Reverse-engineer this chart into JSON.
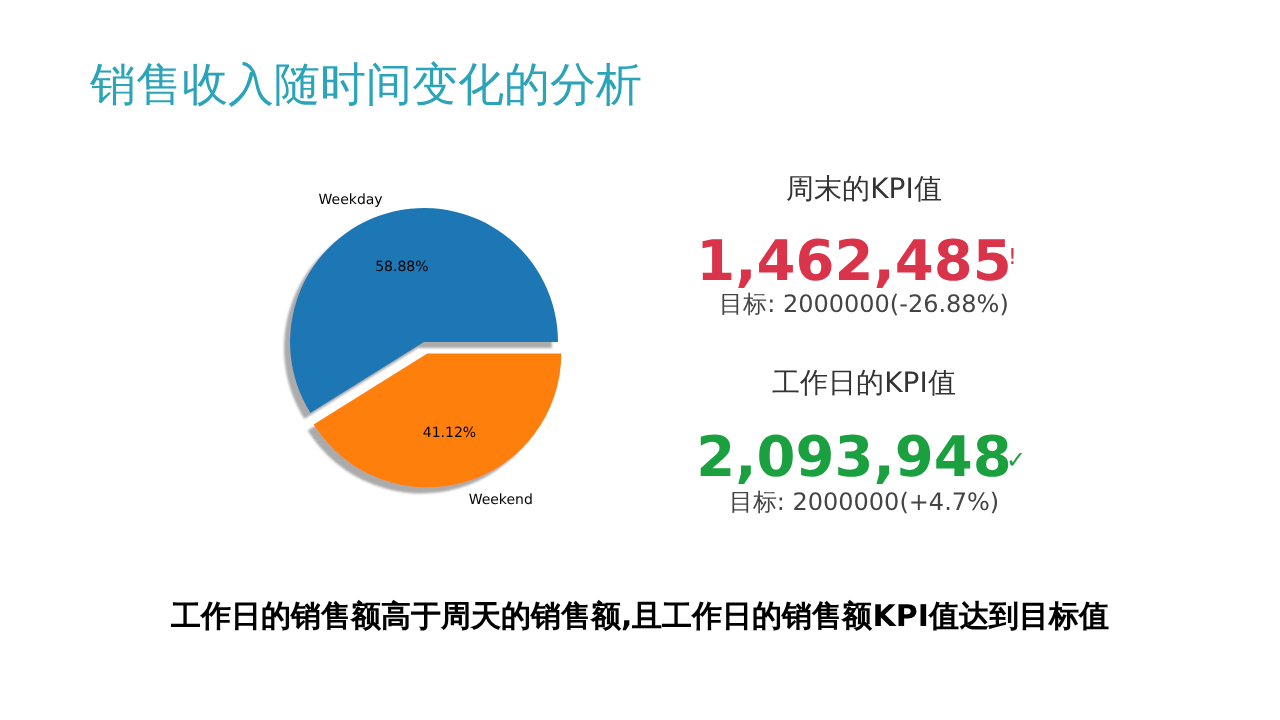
{
  "chart_data": [
    {
      "type": "pie",
      "title": "销售收入随时间变化的分析",
      "categories": [
        "Weekday",
        "Weekend"
      ],
      "values": [
        58.88,
        41.12
      ],
      "colors": [
        "#1f77b4",
        "#ff7f0e"
      ],
      "value_labels": [
        "58.88%",
        "41.12%"
      ]
    },
    {
      "type": "other",
      "annotations": [
        "周末的KPI值",
        "1,462,485",
        "!",
        "目标: 2000000(-26.88%)",
        "工作日的KPI值",
        "2,093,948",
        "✓",
        "目标: 2000000(+4.7%)",
        "工作日的销售额高于周天的销售额,且工作日的销售额KPI值达到目标值"
      ]
    }
  ]
}
